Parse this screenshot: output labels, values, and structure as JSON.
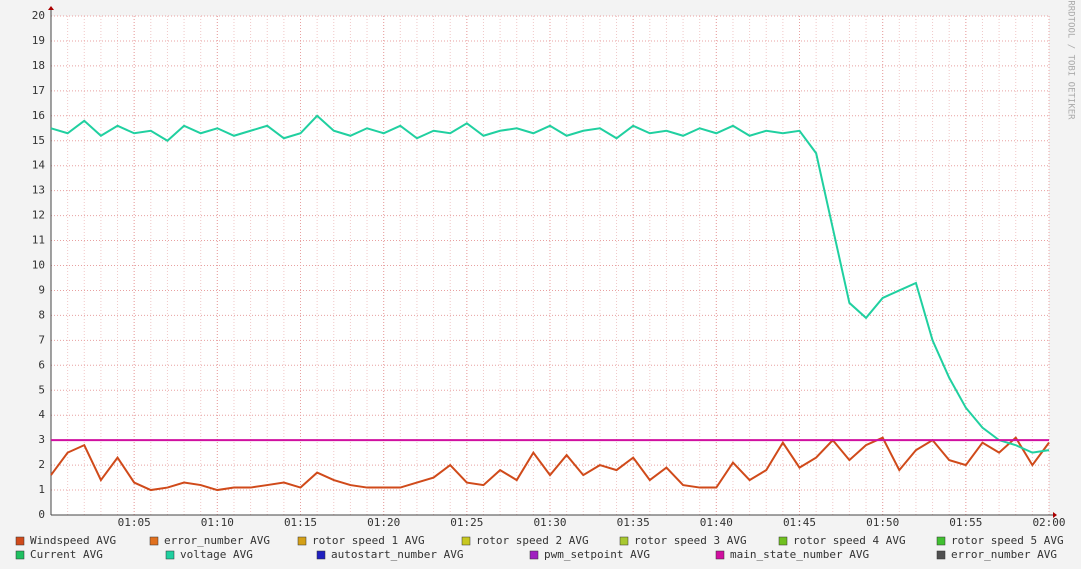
{
  "chart_data": {
    "type": "line",
    "watermark": "RRDTOOL / TOBI OETIKER",
    "x": [
      "01:00",
      "01:01",
      "01:02",
      "01:03",
      "01:04",
      "01:05",
      "01:06",
      "01:07",
      "01:08",
      "01:09",
      "01:10",
      "01:11",
      "01:12",
      "01:13",
      "01:14",
      "01:15",
      "01:16",
      "01:17",
      "01:18",
      "01:19",
      "01:20",
      "01:21",
      "01:22",
      "01:23",
      "01:24",
      "01:25",
      "01:26",
      "01:27",
      "01:28",
      "01:29",
      "01:30",
      "01:31",
      "01:32",
      "01:33",
      "01:34",
      "01:35",
      "01:36",
      "01:37",
      "01:38",
      "01:39",
      "01:40",
      "01:41",
      "01:42",
      "01:43",
      "01:44",
      "01:45",
      "01:46",
      "01:47",
      "01:48",
      "01:49",
      "01:50",
      "01:51",
      "01:52",
      "01:53",
      "01:54",
      "01:55",
      "01:56",
      "01:57",
      "01:58",
      "01:59",
      "02:00"
    ],
    "xlim": [
      "01:00",
      "02:00"
    ],
    "xticks": [
      "01:05",
      "01:10",
      "01:15",
      "01:20",
      "01:25",
      "01:30",
      "01:35",
      "01:40",
      "01:45",
      "01:50",
      "01:55",
      "02:00"
    ],
    "ylim": [
      0,
      20
    ],
    "yticks": [
      0,
      1,
      2,
      3,
      4,
      5,
      6,
      7,
      8,
      9,
      10,
      11,
      12,
      13,
      14,
      15,
      16,
      17,
      18,
      19,
      20
    ],
    "grid": true,
    "series": [
      {
        "name": "Windspeed AVG",
        "color": "#d04a1a",
        "values": [
          1.6,
          2.5,
          2.8,
          1.4,
          2.3,
          1.3,
          1.0,
          1.1,
          1.3,
          1.2,
          1.0,
          1.1,
          1.1,
          1.2,
          1.3,
          1.1,
          1.7,
          1.4,
          1.2,
          1.1,
          1.1,
          1.1,
          1.3,
          1.5,
          2.0,
          1.3,
          1.2,
          1.8,
          1.4,
          2.5,
          1.6,
          2.4,
          1.6,
          2.0,
          1.8,
          2.3,
          1.4,
          1.9,
          1.2,
          1.1,
          1.1,
          2.1,
          1.4,
          1.8,
          2.9,
          1.9,
          2.3,
          3.0,
          2.2,
          2.8,
          3.1,
          1.8,
          2.6,
          3.0,
          2.2,
          2.0,
          2.9,
          2.5,
          3.1,
          2.0,
          2.9
        ]
      },
      {
        "name": "error_number AVG",
        "color": "#e0701e"
      },
      {
        "name": "rotor speed 1 AVG",
        "color": "#d4a017"
      },
      {
        "name": "rotor speed 2 AVG",
        "color": "#c8c820"
      },
      {
        "name": "rotor speed 3 AVG",
        "color": "#a8c830"
      },
      {
        "name": "rotor speed 4 AVG",
        "color": "#70c020"
      },
      {
        "name": "rotor speed 5 AVG",
        "color": "#40c030"
      },
      {
        "name": "Current AVG",
        "color": "#20c060"
      },
      {
        "name": "voltage AVG",
        "color": "#20d0a0",
        "values": [
          15.5,
          15.3,
          15.8,
          15.2,
          15.6,
          15.3,
          15.4,
          15.0,
          15.6,
          15.3,
          15.5,
          15.2,
          15.4,
          15.6,
          15.1,
          15.3,
          16.0,
          15.4,
          15.2,
          15.5,
          15.3,
          15.6,
          15.1,
          15.4,
          15.3,
          15.7,
          15.2,
          15.4,
          15.5,
          15.3,
          15.6,
          15.2,
          15.4,
          15.5,
          15.1,
          15.6,
          15.3,
          15.4,
          15.2,
          15.5,
          15.3,
          15.6,
          15.2,
          15.4,
          15.3,
          15.4,
          14.5,
          11.5,
          8.5,
          7.9,
          8.7,
          9.0,
          9.3,
          7.0,
          5.5,
          4.3,
          3.5,
          3.0,
          2.8,
          2.5,
          2.6
        ]
      },
      {
        "name": "autostart_number AVG",
        "color": "#2020c0"
      },
      {
        "name": "pwm_setpoint AVG",
        "color": "#a020c0"
      },
      {
        "name": "main_state_number AVG",
        "color": "#d010a0",
        "values": [
          3,
          3,
          3,
          3,
          3,
          3,
          3,
          3,
          3,
          3,
          3,
          3,
          3,
          3,
          3,
          3,
          3,
          3,
          3,
          3,
          3,
          3,
          3,
          3,
          3,
          3,
          3,
          3,
          3,
          3,
          3,
          3,
          3,
          3,
          3,
          3,
          3,
          3,
          3,
          3,
          3,
          3,
          3,
          3,
          3,
          3,
          3,
          3,
          3,
          3,
          3,
          3,
          3,
          3,
          3,
          3,
          3,
          3,
          3,
          3,
          3
        ]
      },
      {
        "name": "error_number AVG",
        "color": "#505050"
      }
    ]
  }
}
